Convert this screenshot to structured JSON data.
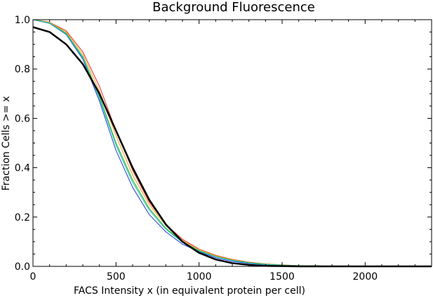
{
  "chart_data": {
    "type": "line",
    "title": "Background Fluorescence",
    "xlabel": "FACS Intensity x (in equivalent protein per cell)",
    "ylabel": "Fraction Cells >= x",
    "xlim": [
      0,
      2400
    ],
    "ylim": [
      0,
      1.0
    ],
    "xticks": [
      0,
      500,
      1000,
      1500,
      2000
    ],
    "yticks": [
      0.0,
      0.2,
      0.4,
      0.6,
      0.8,
      1.0
    ],
    "x_tick_labels": [
      "0",
      "500",
      "1000",
      "1500",
      "2000"
    ],
    "y_tick_labels": [
      "0.0",
      "0.2",
      "0.4",
      "0.6",
      "0.8",
      "1.0"
    ],
    "grid": false,
    "series": [
      {
        "color": "#1a3fd6",
        "style": "thin",
        "x": [
          0,
          100,
          200,
          300,
          400,
          500,
          600,
          700,
          800,
          900,
          1000,
          1100,
          1200,
          1300,
          1400,
          1500,
          1600,
          1800,
          2000,
          2400
        ],
        "y": [
          1.0,
          0.985,
          0.94,
          0.84,
          0.67,
          0.47,
          0.32,
          0.21,
          0.14,
          0.09,
          0.06,
          0.035,
          0.02,
          0.012,
          0.007,
          0.004,
          0.002,
          0.001,
          0.0,
          0.0
        ]
      },
      {
        "color": "#e03030",
        "style": "thin",
        "x": [
          0,
          100,
          200,
          300,
          400,
          500,
          600,
          700,
          800,
          900,
          1000,
          1100,
          1200,
          1300,
          1400,
          1500,
          1600,
          1800,
          2000,
          2400
        ],
        "y": [
          1.0,
          0.99,
          0.955,
          0.87,
          0.73,
          0.55,
          0.39,
          0.26,
          0.17,
          0.11,
          0.07,
          0.045,
          0.028,
          0.017,
          0.01,
          0.006,
          0.003,
          0.001,
          0.0,
          0.0
        ]
      },
      {
        "color": "#f0a020",
        "style": "thin",
        "x": [
          0,
          100,
          200,
          300,
          400,
          500,
          600,
          700,
          800,
          900,
          1000,
          1100,
          1200,
          1300,
          1400,
          1500,
          1600,
          1800,
          2000,
          2400
        ],
        "y": [
          1.0,
          0.99,
          0.95,
          0.86,
          0.71,
          0.53,
          0.37,
          0.25,
          0.165,
          0.105,
          0.068,
          0.043,
          0.027,
          0.016,
          0.01,
          0.006,
          0.003,
          0.001,
          0.0,
          0.0
        ]
      },
      {
        "color": "#20b020",
        "style": "thin",
        "x": [
          0,
          100,
          200,
          300,
          400,
          500,
          600,
          700,
          800,
          900,
          1000,
          1100,
          1200,
          1300,
          1400,
          1500,
          1600,
          1800,
          2000,
          2400
        ],
        "y": [
          1.0,
          0.987,
          0.945,
          0.85,
          0.69,
          0.5,
          0.35,
          0.235,
          0.155,
          0.1,
          0.064,
          0.04,
          0.025,
          0.015,
          0.009,
          0.005,
          0.003,
          0.001,
          0.0,
          0.0
        ]
      },
      {
        "color": "#20c0c0",
        "style": "thin",
        "x": [
          0,
          100,
          200,
          300,
          400,
          500,
          600,
          700,
          800,
          900,
          1000,
          1100,
          1200,
          1300,
          1400,
          1500,
          1600,
          1800,
          2000,
          2400
        ],
        "y": [
          1.0,
          0.986,
          0.942,
          0.845,
          0.68,
          0.49,
          0.34,
          0.228,
          0.15,
          0.097,
          0.062,
          0.039,
          0.024,
          0.014,
          0.008,
          0.005,
          0.002,
          0.001,
          0.0,
          0.0
        ]
      },
      {
        "color": "#000000",
        "style": "thick",
        "x": [
          0,
          100,
          200,
          300,
          400,
          500,
          600,
          700,
          800,
          900,
          1000,
          1100,
          1200,
          1300,
          1400,
          1500,
          1600,
          1800,
          2000,
          2400
        ],
        "y": [
          0.97,
          0.95,
          0.9,
          0.82,
          0.7,
          0.55,
          0.4,
          0.27,
          0.17,
          0.1,
          0.055,
          0.028,
          0.013,
          0.006,
          0.002,
          0.001,
          0.0,
          0.0,
          0.0,
          0.0
        ]
      }
    ]
  }
}
